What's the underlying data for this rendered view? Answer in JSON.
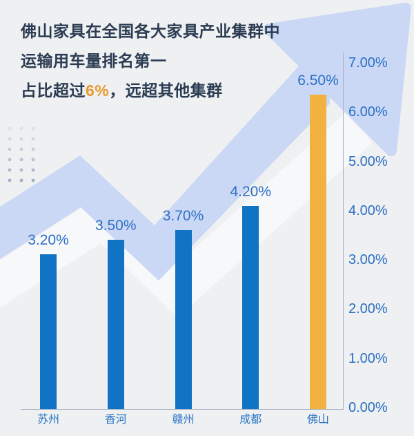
{
  "title": {
    "line1": "佛山家具在全国各大家具产业集群中",
    "line2": "运输用车量排名第一",
    "line3_prefix": "占比超过",
    "line3_highlight": "6%",
    "line3_suffix": "，远超其他集群"
  },
  "colors": {
    "background": "#eef0f2",
    "title_text": "#2b3c52",
    "highlight_orange": "#e89a2e",
    "bar_blue": "#1173c3",
    "bar_yellow": "#f2b240",
    "value_label_blue": "#2d6fc4",
    "category_label_blue": "#2a74c4",
    "axis_gray": "#a7b3c7",
    "band_light_blue": "#cad8f5"
  },
  "chart_data": {
    "type": "bar",
    "categories": [
      "苏州",
      "香河",
      "赣州",
      "成都",
      "佛山"
    ],
    "values": [
      3.2,
      3.5,
      3.7,
      4.2,
      6.5
    ],
    "value_labels": [
      "3.20%",
      "3.50%",
      "3.70%",
      "4.20%",
      "6.50%"
    ],
    "highlight_category": "佛山",
    "y_ticks": [
      "7.00%",
      "6.00%",
      "5.00%",
      "4.00%",
      "3.00%",
      "2.00%",
      "1.00%",
      "0.00%"
    ],
    "ylim": [
      0,
      7
    ],
    "axis_side": "right",
    "grid": false,
    "legend": false,
    "title": "",
    "xlabel": "",
    "ylabel": ""
  }
}
